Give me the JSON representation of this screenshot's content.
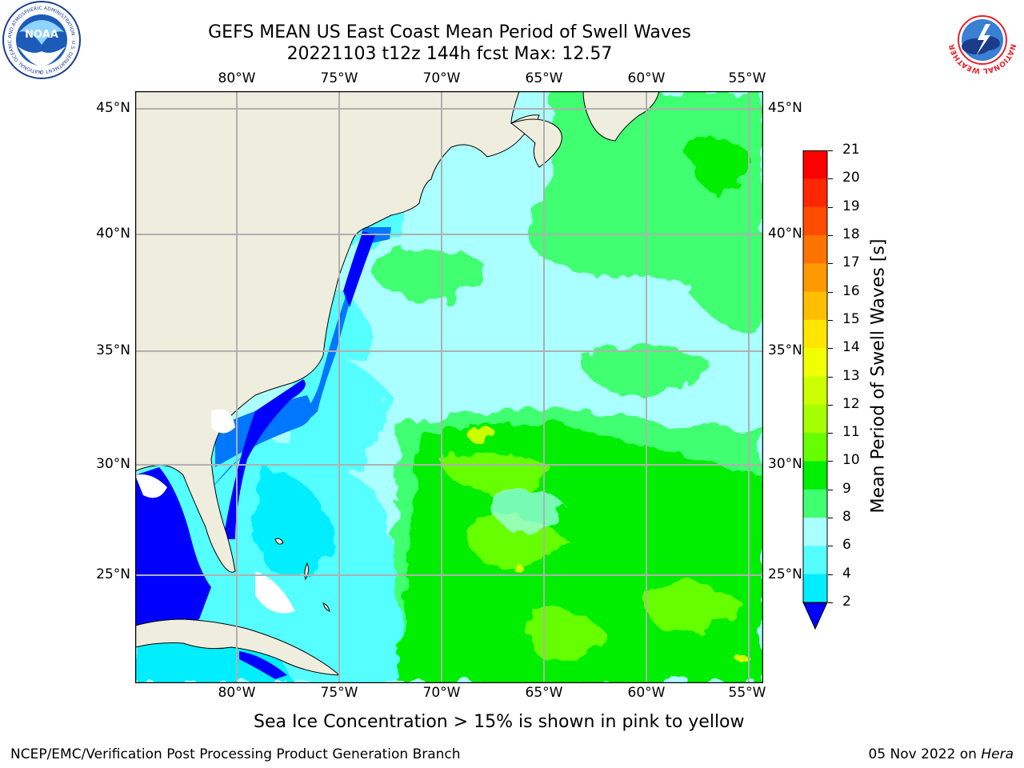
{
  "title": {
    "line1": "GEFS MEAN US East Coast Mean Period of Swell Waves",
    "line2": "20221103 t12z 144h fcst   Max: 12.57"
  },
  "map": {
    "lon_labels": [
      "80°W",
      "75°W",
      "70°W",
      "65°W",
      "60°W",
      "55°W"
    ],
    "lat_labels": [
      "45°N",
      "40°N",
      "35°N",
      "30°N",
      "25°N"
    ],
    "land_color": "#efedde",
    "grid_color": "#b0b0b0"
  },
  "colorbar": {
    "label": "Mean Period of Swell Waves [s]",
    "ticks": [
      "21",
      "20",
      "19",
      "18",
      "17",
      "16",
      "15",
      "14",
      "13",
      "12",
      "11",
      "10",
      "9",
      "8",
      "6",
      "4",
      "2"
    ],
    "colors": [
      "#ff0000",
      "#ff2600",
      "#ff4d00",
      "#ff7300",
      "#ff9900",
      "#ffbf00",
      "#ffe500",
      "#f2ff00",
      "#ccff00",
      "#a6ff00",
      "#66ff00",
      "#00ee00",
      "#40ff70",
      "#aaffff",
      "#55ffff",
      "#00eeff",
      "#00bfff",
      "#0077ff",
      "#0000ff"
    ]
  },
  "logos": {
    "noaa": {
      "text": "NOAA",
      "ring_text": "NATIONAL OCEANIC AND ATMOSPHERIC ADMINISTRATION · U.S. DEPARTMENT OF COMMERCE"
    },
    "nws": {
      "ring_text": "NATIONAL WEATHER SERVICE"
    }
  },
  "note": "Sea Ice Concentration > 15% is shown in pink to yellow",
  "footer": {
    "left": "NCEP/EMC/Verification Post Processing Product Generation Branch",
    "date": "05 Nov 2022 on ",
    "host": "Hera"
  }
}
